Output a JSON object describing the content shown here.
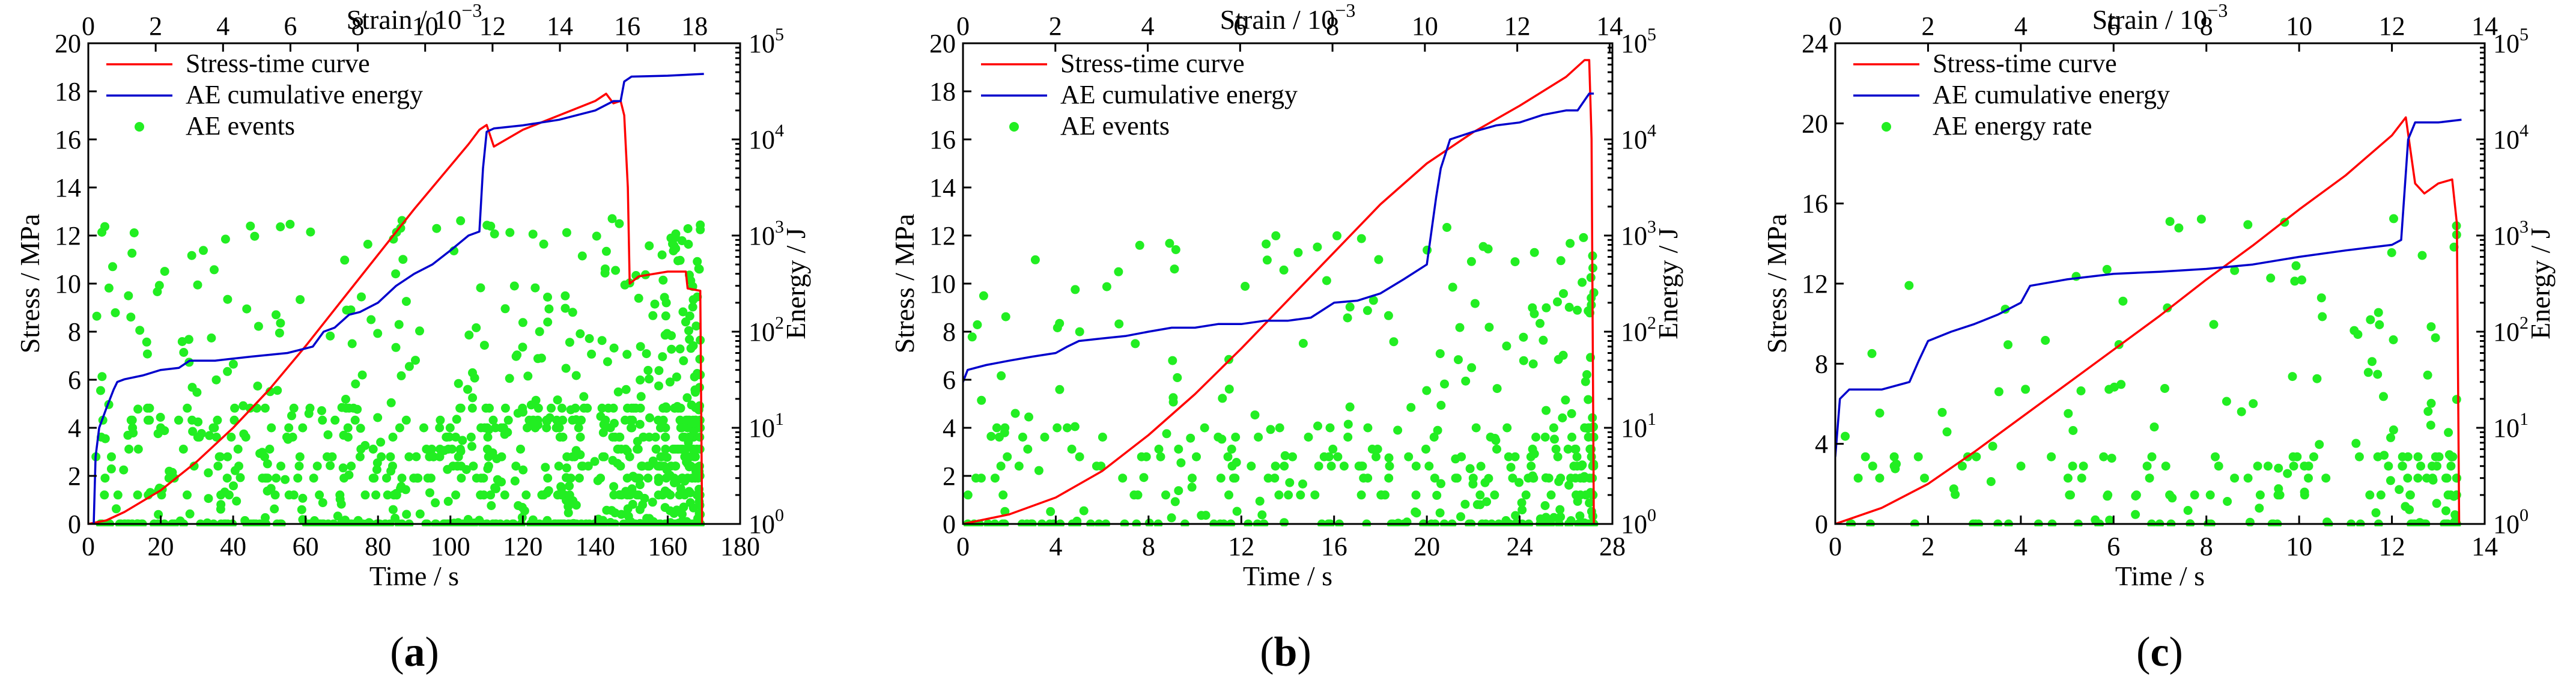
{
  "colors": {
    "stress": "#ff0000",
    "energy": "#0000cc",
    "events": "#22ee22",
    "axis": "#000000"
  },
  "chart_data": [
    {
      "type": "line",
      "caption": "a",
      "xlabel": "Time / s",
      "ylabel": "Stress / MPa",
      "y2label": "Energy / J",
      "x2label": "Strain / 10",
      "x2label_exp": "−3",
      "xlim": [
        0,
        180
      ],
      "xticks": [
        0,
        20,
        40,
        60,
        80,
        100,
        120,
        140,
        160,
        180
      ],
      "ylim": [
        0,
        20
      ],
      "yticks": [
        0,
        2,
        4,
        6,
        8,
        10,
        12,
        14,
        16,
        18,
        20
      ],
      "x2lim": [
        0,
        19.35
      ],
      "x2ticks": [
        0,
        2,
        4,
        6,
        8,
        10,
        12,
        14,
        16,
        18
      ],
      "y2exp_range": [
        0,
        5
      ],
      "legend": [
        "Stress-time curve",
        "AE cumulative energy",
        "AE events"
      ],
      "series": [
        {
          "name": "Stress-time curve",
          "axis": "left",
          "x": [
            0,
            5,
            10,
            20,
            30,
            40,
            50,
            60,
            70,
            80,
            90,
            100,
            105,
            108,
            110,
            112,
            120,
            130,
            140,
            143,
            145,
            147,
            148,
            149,
            149.5,
            152,
            160,
            165,
            165.5,
            169,
            169.5
          ],
          "y": [
            0,
            0.15,
            0.5,
            1.4,
            2.6,
            4.0,
            5.6,
            7.4,
            9.3,
            11.2,
            13.1,
            14.9,
            15.8,
            16.4,
            16.6,
            15.7,
            16.4,
            17.0,
            17.6,
            17.9,
            17.5,
            17.6,
            17.0,
            14.0,
            10.0,
            10.3,
            10.5,
            10.5,
            9.8,
            9.7,
            0
          ]
        },
        {
          "name": "AE cumulative energy",
          "axis": "right",
          "x": [
            1.5,
            2,
            3,
            5,
            7,
            8,
            10,
            15,
            20,
            25,
            28,
            35,
            45,
            55,
            62,
            65,
            68,
            72,
            75,
            80,
            85,
            90,
            95,
            100,
            105,
            108,
            109,
            110,
            112,
            120,
            130,
            140,
            145,
            147,
            148,
            150,
            160,
            170
          ],
          "y": [
            1,
            5,
            10,
            16,
            25,
            30,
            32,
            35,
            40,
            42,
            50,
            50,
            55,
            60,
            70,
            100,
            110,
            150,
            160,
            200,
            300,
            400,
            500,
            700,
            1000,
            1100,
            5000,
            12000,
            13000,
            14000,
            16000,
            20000,
            25000,
            25000,
            40000,
            45000,
            46000,
            48000
          ]
        }
      ],
      "events": {
        "name": "AE events",
        "seed": 17,
        "time_range": [
          2,
          169
        ],
        "level_rows": [
          2,
          3,
          4,
          5,
          6,
          8,
          10,
          12,
          16
        ],
        "count": 980
      }
    },
    {
      "type": "line",
      "caption": "b",
      "xlabel": "Time / s",
      "ylabel": "Stress / MPa",
      "y2label": "Energy / J",
      "x2label": "Strain / 10",
      "x2label_exp": "−3",
      "xlim": [
        0,
        28
      ],
      "xticks": [
        0,
        4,
        8,
        12,
        16,
        20,
        24,
        28
      ],
      "ylim": [
        0,
        20
      ],
      "yticks": [
        0,
        2,
        4,
        6,
        8,
        10,
        12,
        14,
        16,
        18,
        20
      ],
      "x2lim": [
        0,
        14.06
      ],
      "x2ticks": [
        0,
        2,
        4,
        6,
        8,
        10,
        12,
        14
      ],
      "y2exp_range": [
        0,
        5
      ],
      "legend": [
        "Stress-time curve",
        "AE cumulative energy",
        "AE events"
      ],
      "series": [
        {
          "name": "Stress-time curve",
          "axis": "left",
          "x": [
            0,
            2,
            4,
            6,
            8,
            10,
            12,
            14,
            16,
            18,
            20,
            22,
            24,
            26,
            26.8,
            27.0,
            27.1,
            27.2
          ],
          "y": [
            0,
            0.4,
            1.1,
            2.2,
            3.7,
            5.4,
            7.3,
            9.3,
            11.3,
            13.3,
            15.0,
            16.3,
            17.4,
            18.6,
            19.3,
            19.3,
            16.0,
            0
          ]
        },
        {
          "name": "AE cumulative energy",
          "axis": "right",
          "x": [
            0,
            0.2,
            1,
            2,
            3,
            4,
            4.5,
            5,
            6,
            7,
            8,
            9,
            10,
            11,
            12,
            13,
            14,
            15,
            16,
            17,
            18,
            19,
            20,
            20.4,
            20.6,
            21,
            22,
            23,
            24,
            25,
            26,
            26.5,
            27,
            27.2
          ],
          "y": [
            30,
            40,
            45,
            50,
            55,
            60,
            70,
            80,
            85,
            90,
            100,
            110,
            110,
            120,
            120,
            130,
            130,
            140,
            200,
            210,
            250,
            350,
            500,
            2500,
            5000,
            10000,
            12000,
            14000,
            15000,
            18000,
            20000,
            20000,
            30000,
            30000
          ]
        }
      ],
      "events": {
        "name": "AE events",
        "seed": 29,
        "time_range": [
          0.2,
          27.2
        ],
        "level_rows": [
          2,
          3,
          4,
          5,
          6,
          8,
          10
        ],
        "count": 420
      }
    },
    {
      "type": "line",
      "caption": "c",
      "xlabel": "Time / s",
      "ylabel": "Stress / MPa",
      "y2label": "Energy / J",
      "x2label": "Strain / 10",
      "x2label_exp": "−3",
      "xlim": [
        0,
        14
      ],
      "xticks": [
        0,
        2,
        4,
        6,
        8,
        10,
        12,
        14
      ],
      "ylim": [
        0,
        24
      ],
      "yticks": [
        0,
        4,
        8,
        12,
        16,
        20,
        24
      ],
      "x2lim": [
        0,
        14
      ],
      "x2ticks": [
        0,
        2,
        4,
        6,
        8,
        10,
        12,
        14
      ],
      "y2exp_range": [
        0,
        5
      ],
      "legend": [
        "Stress-time curve",
        "AE cumulative energy",
        "AE energy rate"
      ],
      "series": [
        {
          "name": "Stress-time curve",
          "axis": "left",
          "x": [
            0,
            1,
            2,
            3,
            4,
            5,
            6,
            7,
            8,
            9,
            10,
            11,
            12,
            12.3,
            12.5,
            12.7,
            13.0,
            13.3,
            13.4,
            13.45
          ],
          "y": [
            0,
            0.8,
            2.0,
            3.6,
            5.3,
            7.0,
            8.7,
            10.4,
            12.2,
            13.9,
            15.7,
            17.4,
            19.4,
            20.3,
            17.0,
            16.5,
            17.0,
            17.2,
            15.0,
            0
          ]
        },
        {
          "name": "AE cumulative energy",
          "axis": "right",
          "x": [
            0,
            0.1,
            0.3,
            1,
            1.6,
            1.8,
            2.0,
            2.5,
            3,
            3.5,
            4.0,
            4.2,
            5,
            6,
            7,
            8,
            9,
            10,
            11,
            12,
            12.2,
            12.35,
            12.5,
            13,
            13.5
          ],
          "y": [
            5,
            20,
            25,
            25,
            30,
            50,
            80,
            100,
            120,
            150,
            200,
            300,
            350,
            400,
            420,
            450,
            500,
            600,
            700,
            800,
            900,
            10000,
            15000,
            15000,
            16000
          ]
        }
      ],
      "events": {
        "name": "AE energy rate",
        "seed": 43,
        "time_range": [
          0,
          13.4
        ],
        "level_rows": [
          2,
          3,
          4,
          5
        ],
        "count": 230
      }
    }
  ]
}
